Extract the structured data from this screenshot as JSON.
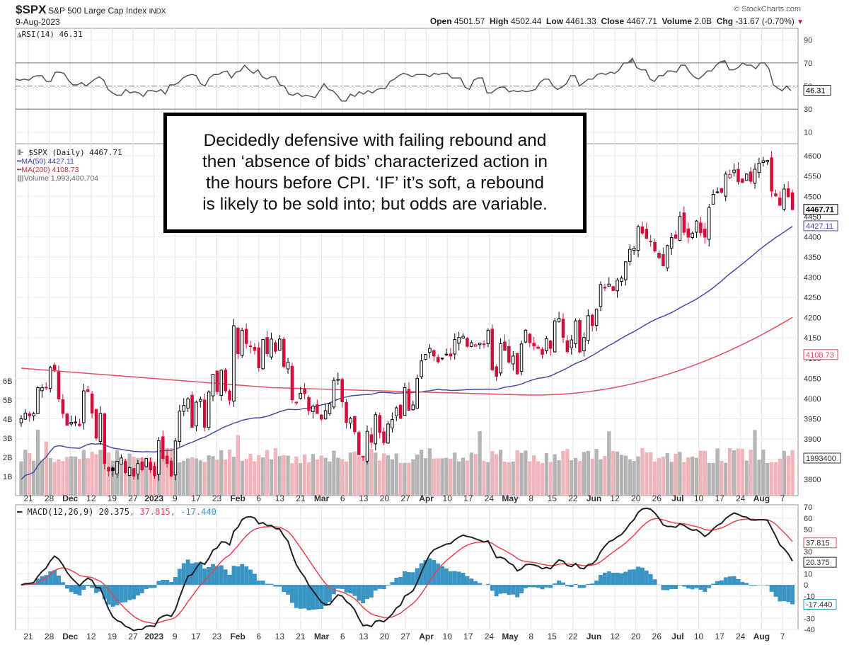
{
  "header": {
    "symbol": "$SPX",
    "name": "S&P 500 Large Cap Index",
    "exchange": "INDX",
    "date": "9-Aug-2023",
    "copyright": "© StockCharts.com",
    "open_label": "Open",
    "open": "4501.57",
    "high_label": "High",
    "high": "4502.44",
    "low_label": "Low",
    "low": "4461.33",
    "close_label": "Close",
    "close": "4467.71",
    "volume_label": "Volume",
    "volume": "2.0B",
    "chg_label": "Chg",
    "chg": "-31.67 (-0.70%)",
    "chg_arrow": "▼"
  },
  "annotation": {
    "lines": [
      "Decidedly defensive with failing rebound and",
      "then ‘absence of bids’ characterized action in",
      "the hours before CPI. ‘IF’ it’s soft, a rebound",
      "is likely to be sold into; but odds are variable."
    ]
  },
  "legends": {
    "rsi": "RSI(14) 46.31",
    "price": "$SPX (Daily) 4467.71",
    "ma50": "MA(50) 4427.11",
    "ma200": "MA(200) 4108.73",
    "volume": "Volume 1,993,400,704",
    "macd_prefix": "MACD(12,26,9) 20.375",
    "macd_signal": ", 37.815",
    "macd_hist": ", -17.440"
  },
  "colors": {
    "up": "#000000",
    "down": "#d0103a",
    "ma50": "#4a4aa8",
    "ma200": "#e05060",
    "vol_up": "#b5b5b5",
    "vol_down": "#f0b5bb",
    "rsi": "#555555",
    "rsi_fill": "#5a8a5a",
    "macd": "#222222",
    "signal": "#e8454f",
    "hist": "#3b95c4"
  },
  "chart_data": [
    {
      "type": "line",
      "title": "RSI(14)",
      "ylim": [
        0,
        100
      ],
      "yticks": [
        10,
        30,
        50,
        70,
        90
      ],
      "reference_lines": [
        30,
        50,
        70
      ],
      "last_value": 46.31,
      "values": [
        56,
        55,
        56,
        55,
        58,
        59,
        59,
        54,
        54,
        62,
        62,
        61,
        55,
        51,
        51,
        53,
        50,
        53,
        56,
        58,
        55,
        47,
        44,
        42,
        42,
        47,
        44,
        45,
        44,
        41,
        46,
        46,
        45,
        47,
        43,
        51,
        51,
        53,
        57,
        59,
        60,
        59,
        52,
        50,
        57,
        60,
        60,
        62,
        63,
        57,
        62,
        63,
        68,
        64,
        61,
        64,
        58,
        56,
        58,
        58,
        51,
        50,
        43,
        42,
        44,
        41,
        42,
        41,
        40,
        46,
        52,
        47,
        46,
        42,
        37,
        37,
        43,
        41,
        45,
        43,
        46,
        44,
        47,
        48,
        48,
        54,
        56,
        59,
        61,
        60,
        58,
        60,
        60,
        60,
        58,
        61,
        60,
        61,
        61,
        57,
        57,
        57,
        49,
        47,
        55,
        57,
        57,
        44,
        44,
        47,
        49,
        49,
        45,
        46,
        45,
        46,
        45,
        46,
        47,
        53,
        56,
        56,
        50,
        47,
        49,
        52,
        59,
        59,
        50,
        53,
        56,
        56,
        60,
        61,
        60,
        62,
        61,
        64,
        70,
        70,
        74,
        66,
        64,
        64,
        56,
        54,
        59,
        59,
        63,
        63,
        62,
        68,
        68,
        62,
        58,
        56,
        59,
        63,
        63,
        68,
        71,
        72,
        64,
        64,
        66,
        70,
        68,
        68,
        65,
        70,
        70,
        65,
        51,
        48,
        46,
        50,
        46
      ]
    },
    {
      "type": "candlestick",
      "title": "$SPX (Daily)",
      "ylim": [
        3760,
        4630
      ],
      "yticks": [
        3800,
        3850,
        3900,
        3950,
        4000,
        4050,
        4100,
        4150,
        4200,
        4250,
        4300,
        4350,
        4400,
        4450,
        4500,
        4550,
        4600
      ],
      "last_close": 4467.71,
      "ma50_last": 4427.11,
      "ma200_last": 4108.73,
      "x_ticks": [
        "21",
        "28",
        "Dec",
        "12",
        "19",
        "27",
        "2023",
        "9",
        "17",
        "23",
        "Feb",
        "6",
        "13",
        "21",
        "Mar",
        "6",
        "13",
        "20",
        "27",
        "Apr",
        "10",
        "17",
        "24",
        "May",
        "8",
        "15",
        "22",
        "Jun",
        "12",
        "20",
        "26",
        "Jul",
        "10",
        "17",
        "24",
        "Aug",
        "7"
      ],
      "x_ticks_bold": [
        "Dec",
        "2023",
        "Feb",
        "Mar",
        "Apr",
        "May",
        "Jun",
        "Jul",
        "Aug"
      ],
      "closes": [
        3950,
        3964,
        3957,
        3963,
        4027,
        4027,
        4026,
        4077,
        4071,
        3999,
        3963,
        3934,
        3941,
        3942,
        3933,
        4019,
        4017,
        3964,
        3902,
        3963,
        3839,
        3821,
        3822,
        3845,
        3853,
        3817,
        3829,
        3808,
        3839,
        3824,
        3852,
        3824,
        3809,
        3896,
        3852,
        3839,
        3808,
        3895,
        3969,
        3983,
        3999,
        3929,
        3991,
        3998,
        3929,
        4016,
        4060,
        4017,
        4070,
        4019,
        3996,
        4180,
        4111,
        4169,
        4136,
        4130,
        4119,
        4076,
        4146,
        4111,
        4147,
        4117,
        4147,
        4079,
        4090,
        3997,
        3991,
        4013,
        4012,
        3970,
        3981,
        3963,
        3949,
        3970,
        3987,
        4045,
        4048,
        3992,
        3941,
        3951,
        3918,
        3861,
        3855,
        3919,
        3892,
        3960,
        3916,
        3891,
        3937,
        3948,
        3977,
        3951,
        4027,
        3971,
        3984,
        4050,
        4093,
        4109,
        4124,
        4105,
        4091,
        4100,
        4109,
        4105,
        4146,
        4151,
        4154,
        4129,
        4138,
        4133,
        4137,
        4135,
        4169,
        4071,
        4055,
        4136,
        4119,
        4090,
        4105,
        4061,
        4135,
        4169,
        4138,
        4130,
        4124,
        4109,
        4148,
        4124,
        4192,
        4198,
        4151,
        4116,
        4145,
        4192,
        4115,
        4151,
        4205,
        4180,
        4221,
        4282,
        4273,
        4283,
        4267,
        4293,
        4298,
        4338,
        4369,
        4372,
        4425,
        4409,
        4396,
        4389,
        4365,
        4348,
        4328,
        4378,
        4398,
        4396,
        4450,
        4411,
        4399,
        4409,
        4439,
        4410,
        4399,
        4472,
        4505,
        4511,
        4510,
        4555,
        4554,
        4565,
        4536,
        4534,
        4555,
        4537,
        4567,
        4582,
        4588,
        4589,
        4513,
        4501,
        4478,
        4518,
        4499,
        4467
      ]
    },
    {
      "type": "bar",
      "title": "Volume",
      "ylim": [
        0,
        7
      ],
      "yunit": "B",
      "yticks": [
        "1B",
        "2B",
        "3B",
        "4B",
        "5B",
        "6B"
      ],
      "last_value": 1993400704
    },
    {
      "type": "line",
      "title": "MACD(12,26,9)",
      "ylim": [
        -40,
        72
      ],
      "yticks": [
        -40,
        -30,
        -20,
        -10,
        0,
        10,
        20,
        30,
        40,
        50,
        60,
        70
      ],
      "series": [
        {
          "name": "MACD",
          "last": 20.375
        },
        {
          "name": "Signal",
          "last": 37.815
        },
        {
          "name": "Histogram",
          "last": -17.44
        }
      ]
    }
  ]
}
